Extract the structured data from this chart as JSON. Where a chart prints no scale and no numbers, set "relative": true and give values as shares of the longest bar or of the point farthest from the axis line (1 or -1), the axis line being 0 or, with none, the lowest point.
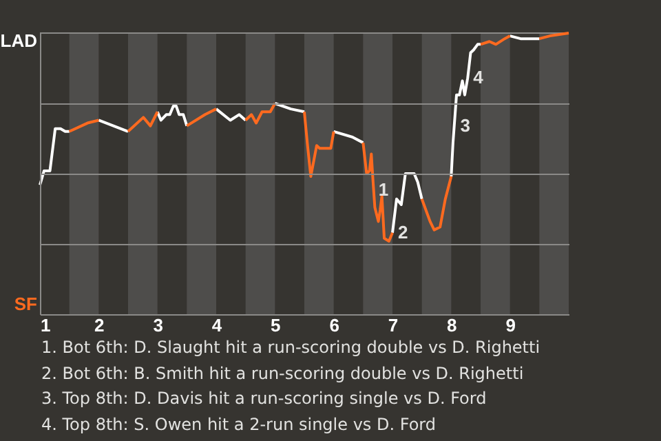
{
  "chart_data": {
    "type": "line",
    "relative": true,
    "x": [
      1.0,
      1.07,
      1.17,
      1.26,
      1.35,
      1.43,
      1.5,
      1.81,
      2.0,
      2.5,
      2.76,
      2.88,
      3.0,
      3.06,
      3.15,
      3.21,
      3.27,
      3.32,
      3.37,
      3.44,
      3.5,
      3.81,
      4.0,
      4.24,
      4.39,
      4.5,
      4.6,
      4.68,
      4.78,
      4.92,
      5.0,
      5.27,
      5.5,
      5.55,
      5.61,
      5.71,
      5.76,
      5.95,
      6.0,
      6.32,
      6.5,
      6.56,
      6.61,
      6.64,
      6.67,
      6.7,
      6.76,
      6.79,
      6.82,
      6.86,
      6.94,
      7.0,
      7.07,
      7.15,
      7.22,
      7.37,
      7.43,
      7.5,
      7.64,
      7.71,
      7.81,
      7.9,
      8.0,
      8.03,
      8.09,
      8.14,
      8.19,
      8.23,
      8.28,
      8.33,
      8.38,
      8.45,
      8.5,
      8.65,
      8.76,
      8.91,
      9.0,
      9.18,
      9.5
    ],
    "series": [
      {
        "name": "LAD",
        "color": "#ffffff",
        "values": [
          0.46,
          0.51,
          0.51,
          0.66,
          0.66,
          0.65,
          0.65,
          null,
          0.69,
          0.65,
          null,
          null,
          0.72,
          0.69,
          0.71,
          0.71,
          0.74,
          0.74,
          0.71,
          0.71,
          0.67,
          null,
          0.73,
          0.69,
          0.71,
          0.69,
          null,
          null,
          null,
          null,
          0.75,
          0.73,
          0.72,
          null,
          null,
          null,
          null,
          null,
          0.65,
          0.63,
          0.61,
          null,
          null,
          null,
          null,
          null,
          null,
          null,
          null,
          null,
          null,
          0.29,
          0.41,
          0.39,
          0.5,
          0.5,
          0.47,
          0.41,
          null,
          null,
          null,
          null,
          0.49,
          0.61,
          0.78,
          0.78,
          0.83,
          0.78,
          0.84,
          0.93,
          0.94,
          0.96,
          0.96,
          null,
          null,
          null,
          0.99,
          0.98,
          0.98
        ]
      },
      {
        "name": "SF",
        "color": "#ff6a1f",
        "x": [
          1.5,
          1.81,
          2.0,
          2.25,
          2.5,
          2.76,
          2.88,
          3.0,
          3.25,
          3.5,
          3.81,
          4.0,
          4.25,
          4.5,
          4.6,
          4.68,
          4.78,
          4.92,
          5.0,
          5.25,
          5.5,
          5.55,
          5.61,
          5.71,
          5.76,
          5.95,
          6.0,
          6.25,
          6.5,
          6.56,
          6.61,
          6.64,
          6.67,
          6.7,
          6.76,
          6.79,
          6.82,
          6.86,
          6.94,
          7.0,
          7.25,
          7.5,
          7.64,
          7.71,
          7.81,
          7.9,
          8.0,
          8.25,
          8.5,
          8.65,
          8.76,
          8.91,
          9.0,
          9.25,
          9.5,
          9.68,
          10.0
        ],
        "values": [
          0.65,
          0.68,
          0.69,
          null,
          0.65,
          0.7,
          0.67,
          0.72,
          null,
          0.67,
          0.71,
          0.73,
          null,
          0.69,
          0.71,
          0.68,
          0.72,
          0.72,
          0.75,
          null,
          0.72,
          0.61,
          0.49,
          0.6,
          0.59,
          0.59,
          0.65,
          null,
          0.61,
          0.5,
          0.51,
          0.57,
          0.47,
          0.38,
          0.33,
          0.37,
          0.42,
          0.27,
          0.26,
          0.29,
          null,
          0.41,
          0.33,
          0.3,
          0.31,
          0.41,
          0.49,
          null,
          0.96,
          0.97,
          0.96,
          0.98,
          0.99,
          null,
          0.98,
          0.99,
          1.0
        ]
      }
    ],
    "xlim": [
      1,
      10
    ],
    "xticks": [
      1,
      2,
      3,
      4,
      5,
      6,
      7,
      8,
      9
    ],
    "grid": "y",
    "bands": [
      {
        "axis": "x",
        "from": 1.5,
        "to": 2,
        "color": "#4e4d4b"
      },
      {
        "axis": "x",
        "from": 2.5,
        "to": 3,
        "color": "#4e4d4b"
      },
      {
        "axis": "x",
        "from": 3.5,
        "to": 4,
        "color": "#4e4d4b"
      },
      {
        "axis": "x",
        "from": 4.5,
        "to": 5,
        "color": "#4e4d4b"
      },
      {
        "axis": "x",
        "from": 5.5,
        "to": 6,
        "color": "#4e4d4b"
      },
      {
        "axis": "x",
        "from": 6.5,
        "to": 7,
        "color": "#4e4d4b"
      },
      {
        "axis": "x",
        "from": 7.5,
        "to": 8,
        "color": "#4e4d4b"
      },
      {
        "axis": "x",
        "from": 8.5,
        "to": 9,
        "color": "#4e4d4b"
      },
      {
        "axis": "x",
        "from": 9.5,
        "to": 10,
        "color": "#4e4d4b"
      }
    ],
    "annotations": [
      {
        "text": "1",
        "x": 6.67,
        "y": 0.44
      },
      {
        "text": "2",
        "x": 7.0,
        "y": 0.29
      },
      {
        "text": "3",
        "x": 8.06,
        "y": 0.67
      },
      {
        "text": "4",
        "x": 8.28,
        "y": 0.84
      },
      "1. Bot 6th: D. Slaught hit a run-scoring double vs D. Righetti",
      "2. Bot 6th: B. Smith hit a run-scoring double vs D. Righetti",
      "3. Top 8th: D. Davis hit a run-scoring single vs D. Ford",
      "4. Top 8th: S. Owen hit a 2-run single vs D. Ford"
    ]
  }
}
